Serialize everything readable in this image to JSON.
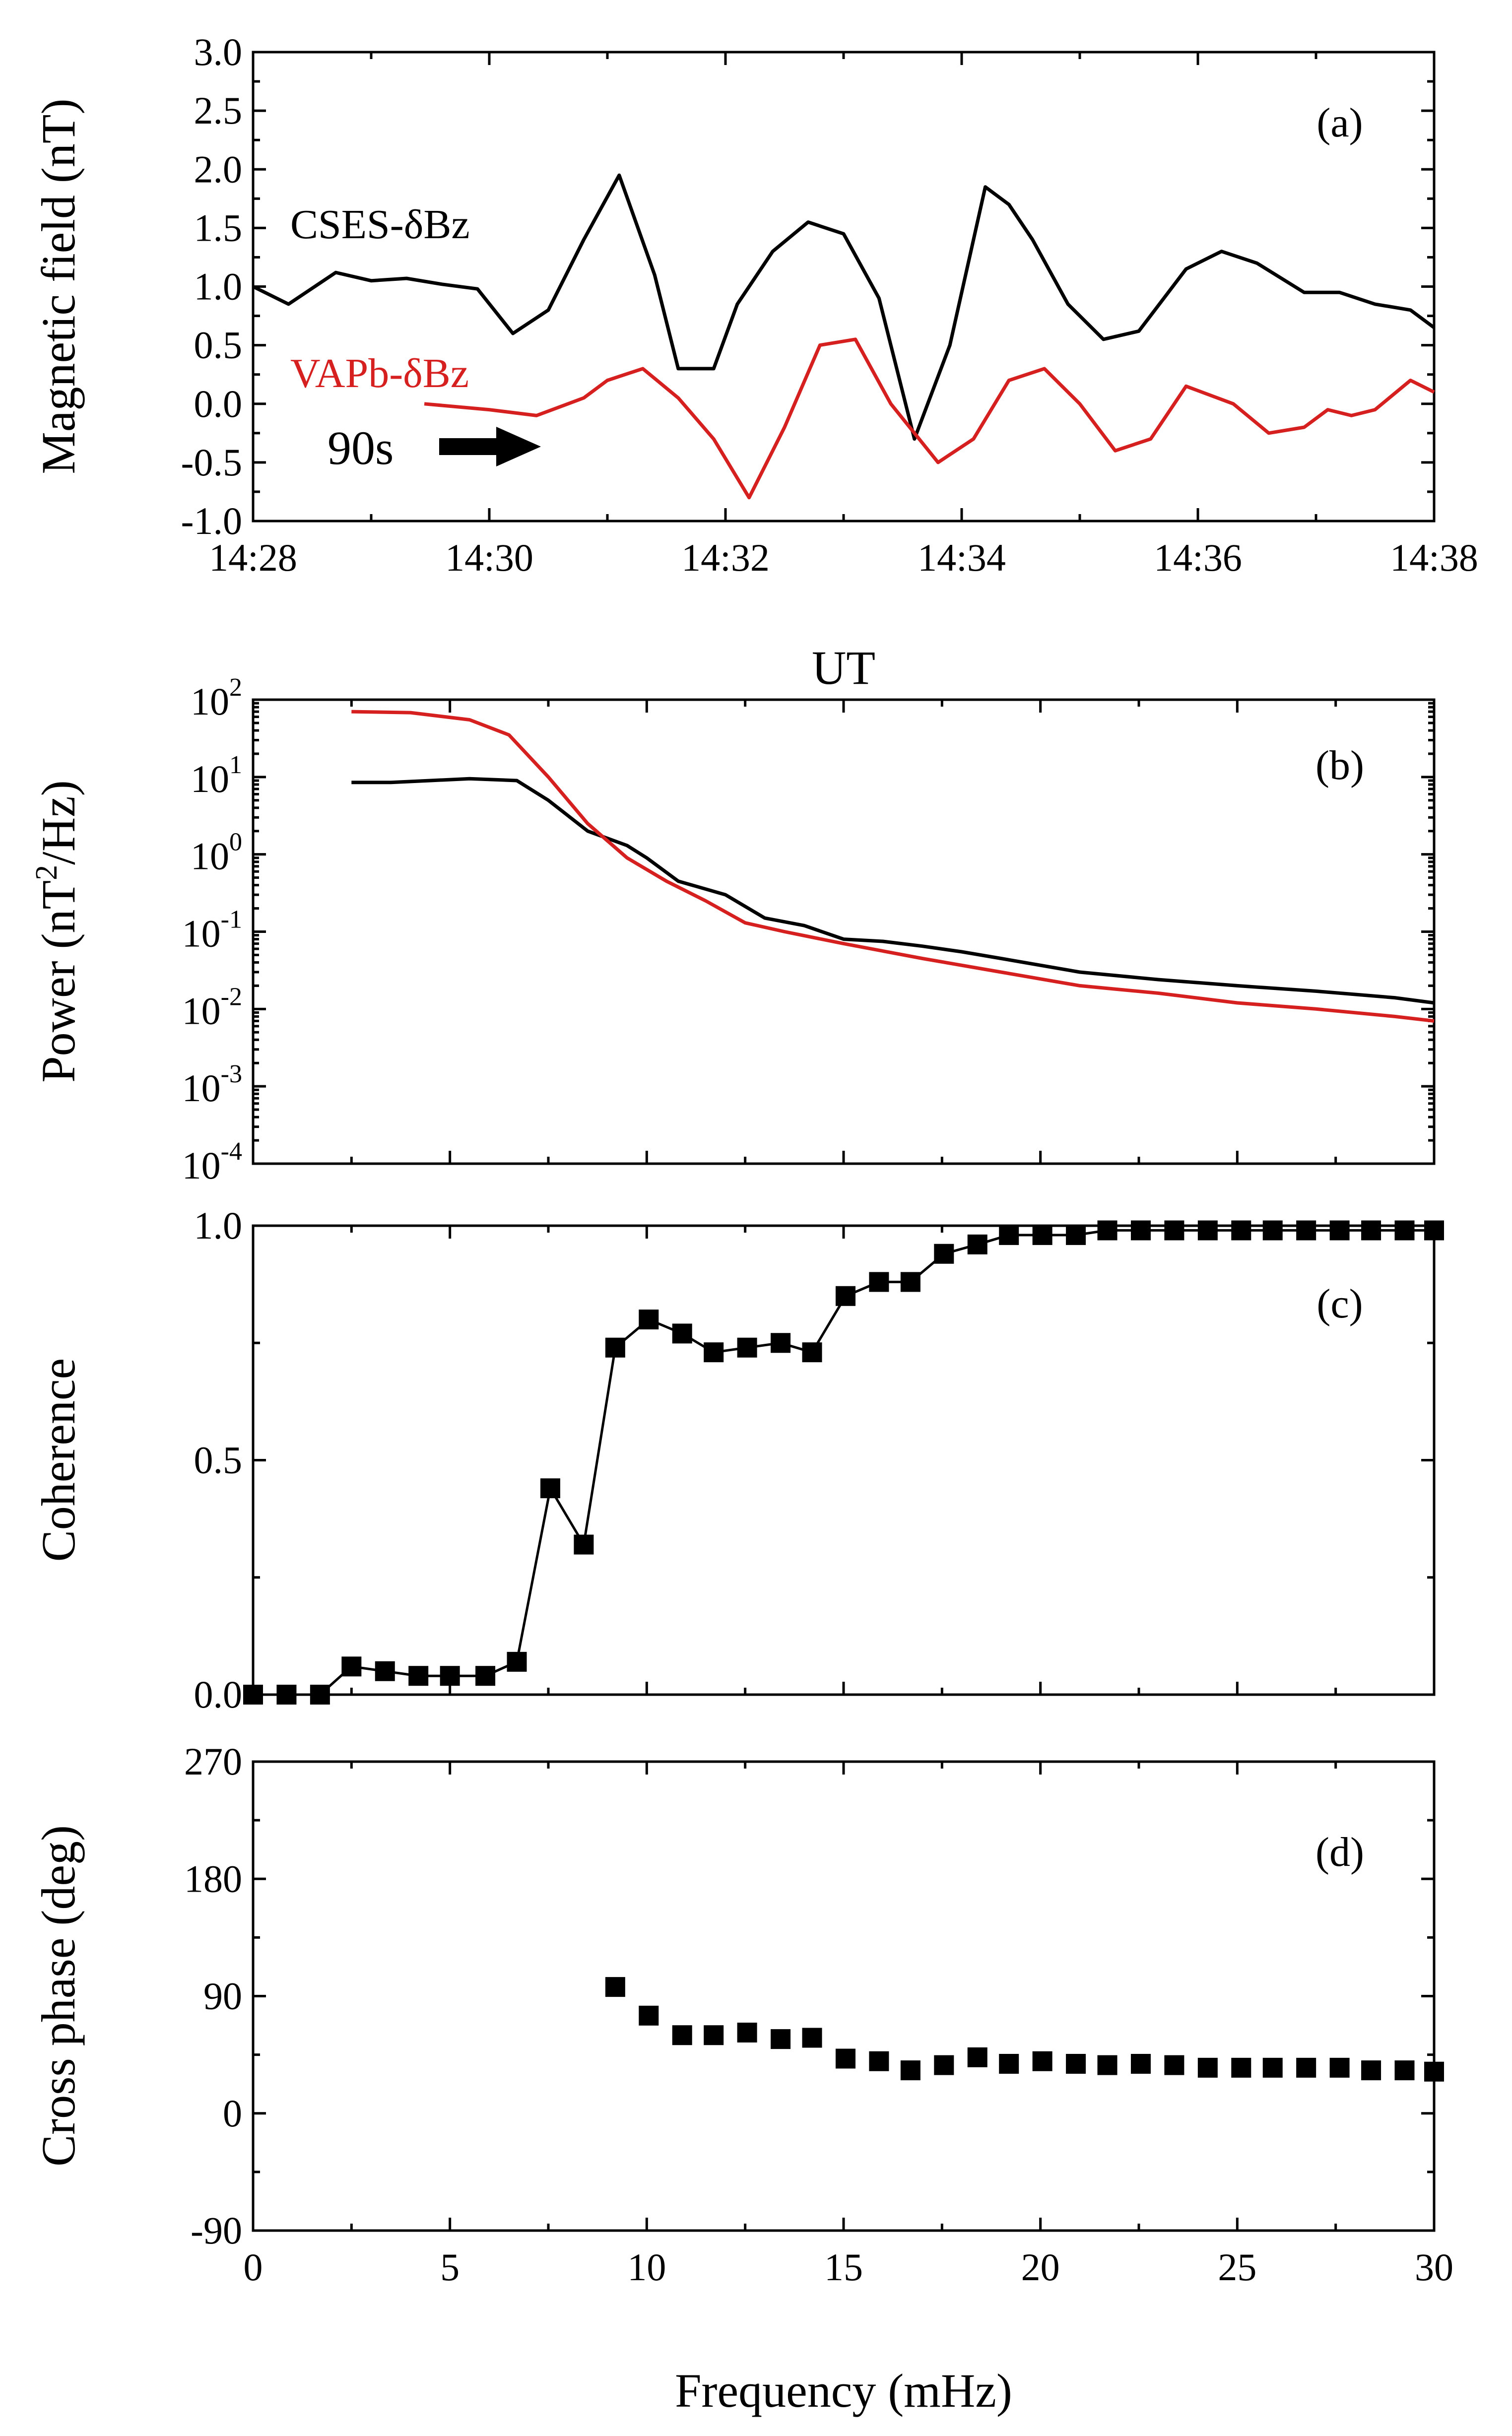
{
  "colors": {
    "cses": "#000000",
    "vapb": "#d62020",
    "axis": "#000000"
  },
  "chart_data": [
    {
      "type": "line",
      "panel": "(a)",
      "ylabel": "Magnetic field (nT)",
      "xlabel": "UT",
      "ylim": [
        -1.0,
        3.0
      ],
      "yticks": [
        -1.0,
        -0.5,
        0.0,
        0.5,
        1.0,
        1.5,
        2.0,
        2.5,
        3.0
      ],
      "ytick_labels": [
        "-1.0",
        "-0.5",
        "0.0",
        "0.5",
        "1.0",
        "1.5",
        "2.0",
        "2.5",
        "3.0"
      ],
      "xlim": [
        0,
        10
      ],
      "xticks": [
        0,
        2,
        4,
        6,
        8,
        10
      ],
      "xtick_labels": [
        "14:28",
        "14:30",
        "14:32",
        "14:34",
        "14:36",
        "14:38"
      ],
      "annotation_arrow": "90s",
      "series": [
        {
          "name": "CSES-δBz",
          "color": "#000000",
          "x": [
            0,
            0.3,
            0.7,
            1.0,
            1.3,
            1.6,
            1.9,
            2.2,
            2.5,
            2.8,
            3.1,
            3.4,
            3.6,
            3.9,
            4.1,
            4.4,
            4.7,
            5.0,
            5.3,
            5.6,
            5.9,
            6.2,
            6.4,
            6.6,
            6.9,
            7.2,
            7.5,
            7.9,
            8.2,
            8.5,
            8.9,
            9.2,
            9.5,
            9.8,
            10.0
          ],
          "y": [
            1.0,
            0.85,
            1.12,
            1.05,
            1.07,
            1.02,
            0.98,
            0.6,
            0.8,
            1.4,
            1.95,
            1.1,
            0.3,
            0.3,
            0.85,
            1.3,
            1.55,
            1.45,
            0.9,
            -0.3,
            0.5,
            1.85,
            1.7,
            1.4,
            0.85,
            0.55,
            0.62,
            1.15,
            1.3,
            1.2,
            0.95,
            0.95,
            0.85,
            0.8,
            0.65
          ]
        },
        {
          "name": "VAPb-δBz",
          "color": "#d62020",
          "x": [
            1.45,
            2.0,
            2.4,
            2.8,
            3.0,
            3.3,
            3.6,
            3.9,
            4.2,
            4.5,
            4.8,
            5.1,
            5.4,
            5.8,
            6.1,
            6.4,
            6.7,
            7.0,
            7.3,
            7.6,
            7.9,
            8.3,
            8.6,
            8.9,
            9.1,
            9.3,
            9.5,
            9.8,
            10.0
          ],
          "y": [
            0.0,
            -0.05,
            -0.1,
            0.05,
            0.2,
            0.3,
            0.05,
            -0.3,
            -0.8,
            -0.2,
            0.5,
            0.55,
            0.0,
            -0.5,
            -0.3,
            0.2,
            0.3,
            0.0,
            -0.4,
            -0.3,
            0.15,
            0.0,
            -0.25,
            -0.2,
            -0.05,
            -0.1,
            -0.05,
            0.2,
            0.1
          ]
        }
      ],
      "panel_label": "(a)"
    },
    {
      "type": "line",
      "panel": "(b)",
      "title": "UT",
      "ylabel_parts": [
        "Power (nT",
        "2",
        "/Hz)"
      ],
      "yscale": "log",
      "ylim": [
        0.0001,
        100
      ],
      "ytick_mantissa": [
        "10",
        "10",
        "10",
        "10",
        "10",
        "10",
        "10"
      ],
      "ytick_exponents": [
        "2",
        "1",
        "0",
        "-1",
        "-2",
        "-3",
        "-4"
      ],
      "yticks": [
        100,
        10,
        1,
        0.1,
        0.01,
        0.001,
        0.0001
      ],
      "xlim": [
        0,
        30
      ],
      "series": [
        {
          "name": "CSES-δBz",
          "color": "#000000",
          "x": [
            2.5,
            3.5,
            4.5,
            5.5,
            6.7,
            7.5,
            8.5,
            9.5,
            10.0,
            10.8,
            12.0,
            13.0,
            14.0,
            15.0,
            16.0,
            17.0,
            18.0,
            19.0,
            21.0,
            23.0,
            25.0,
            27.0,
            29.0,
            30.0
          ],
          "y": [
            8.5,
            8.5,
            9.0,
            9.5,
            9.0,
            5.0,
            2.0,
            1.3,
            0.9,
            0.45,
            0.3,
            0.15,
            0.12,
            0.08,
            0.075,
            0.065,
            0.055,
            0.045,
            0.03,
            0.024,
            0.02,
            0.017,
            0.014,
            0.012
          ]
        },
        {
          "name": "VAPb-δBz",
          "color": "#d62020",
          "x": [
            2.5,
            4.0,
            5.5,
            6.5,
            7.5,
            8.5,
            9.5,
            10.5,
            11.5,
            12.5,
            13.5,
            15.0,
            17.0,
            19.0,
            21.0,
            23.0,
            25.0,
            27.0,
            29.0,
            30.0
          ],
          "y": [
            70,
            68,
            55,
            35,
            10,
            2.5,
            0.9,
            0.45,
            0.25,
            0.13,
            0.1,
            0.07,
            0.045,
            0.03,
            0.02,
            0.016,
            0.012,
            0.01,
            0.008,
            0.007
          ]
        }
      ],
      "panel_label": "(b)"
    },
    {
      "type": "scatter",
      "panel": "(c)",
      "ylabel": "Coherence",
      "ylim": [
        0.0,
        1.0
      ],
      "yticks": [
        0.0,
        0.5,
        1.0
      ],
      "ytick_labels": [
        "0.0",
        "0.5",
        "1.0"
      ],
      "xlim": [
        0,
        30
      ],
      "series": [
        {
          "name": "coherence",
          "color": "#000000",
          "x": [
            0,
            0.85,
            1.7,
            2.5,
            3.35,
            4.2,
            5.0,
            5.9,
            6.7,
            7.55,
            8.4,
            9.2,
            10.05,
            10.9,
            11.7,
            12.55,
            13.4,
            14.2,
            15.05,
            15.9,
            16.7,
            17.55,
            18.4,
            19.2,
            20.05,
            20.9,
            21.7,
            22.55,
            23.4,
            24.25,
            25.1,
            25.9,
            26.75,
            27.6,
            28.4,
            29.25,
            30.0
          ],
          "y": [
            0.0,
            0.0,
            0.0,
            0.06,
            0.05,
            0.04,
            0.04,
            0.04,
            0.07,
            0.44,
            0.32,
            0.74,
            0.8,
            0.77,
            0.73,
            0.74,
            0.75,
            0.73,
            0.85,
            0.88,
            0.88,
            0.94,
            0.96,
            0.98,
            0.98,
            0.98,
            0.99,
            0.99,
            0.99,
            0.99,
            0.99,
            0.99,
            0.99,
            0.99,
            0.99,
            0.99,
            0.99
          ]
        }
      ],
      "panel_label": "(c)"
    },
    {
      "type": "scatter",
      "panel": "(d)",
      "ylabel": "Cross phase (deg)",
      "xlabel": "Frequency (mHz)",
      "ylim": [
        -90,
        270
      ],
      "yticks": [
        -90,
        0,
        90,
        180,
        270
      ],
      "ytick_labels": [
        "-90",
        "0",
        "90",
        "180",
        "270"
      ],
      "xlim": [
        0,
        30
      ],
      "xticks": [
        0,
        5,
        10,
        15,
        20,
        25,
        30
      ],
      "xtick_labels": [
        "0",
        "5",
        "10",
        "15",
        "20",
        "25",
        "30"
      ],
      "series": [
        {
          "name": "cross phase",
          "color": "#000000",
          "x": [
            9.2,
            10.05,
            10.9,
            11.7,
            12.55,
            13.4,
            14.2,
            15.05,
            15.9,
            16.7,
            17.55,
            18.4,
            19.2,
            20.05,
            20.9,
            21.7,
            22.55,
            23.4,
            24.25,
            25.1,
            25.9,
            26.75,
            27.6,
            28.4,
            29.25,
            30.0
          ],
          "y": [
            97,
            75,
            60,
            60,
            62,
            57,
            58,
            42,
            40,
            33,
            37,
            43,
            38,
            40,
            38,
            37,
            38,
            37,
            35,
            35,
            35,
            35,
            35,
            33,
            33,
            32
          ]
        }
      ],
      "panel_label": "(d)"
    }
  ]
}
